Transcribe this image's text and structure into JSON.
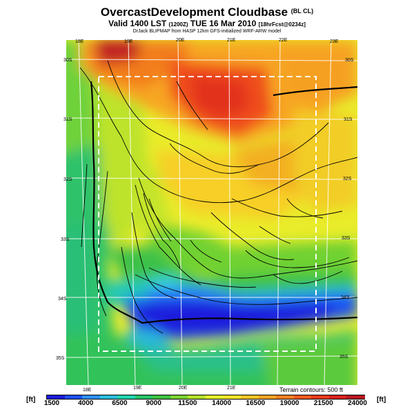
{
  "header": {
    "title": "OvercastDevelopment Cloudbase",
    "title_tag": "(BL CL)",
    "valid_prefix": "Valid 1400 LST",
    "valid_zulu": "(1200Z)",
    "valid_date": "TUE 16 Mar 2010",
    "valid_suffix": "[18hrFcst@0234z]",
    "source": "DrJack BLIPMAP from HASP 12km GFS-initialized WRF-ARW model"
  },
  "map": {
    "longitude_labels_top": [
      "18E",
      "19E",
      "20E",
      "21E",
      "22E",
      "23E"
    ],
    "longitude_labels_bottom": [
      "18E",
      "19E",
      "20E",
      "21E"
    ],
    "latitude_labels_left": [
      "30S",
      "31S",
      "32S",
      "33S",
      "34S",
      "35S"
    ],
    "latitude_labels_right": [
      "30S",
      "31S",
      "32S",
      "33S",
      "34S",
      "35S"
    ],
    "terrain_note": "Terrain contours: 500 ft"
  },
  "colorbar": {
    "unit_left": "[ft]",
    "unit_right": "[ft]",
    "tick_labels": [
      "1500",
      "4000",
      "6500",
      "9000",
      "11500",
      "14000",
      "16500",
      "19000",
      "21500",
      "24000"
    ],
    "colors": [
      "#1a1adc",
      "#1f4ef0",
      "#2f8ff5",
      "#2dbcdc",
      "#1fd5b0",
      "#27c468",
      "#3fc242",
      "#7cd231",
      "#b4e02a",
      "#e4ef2a",
      "#f7e428",
      "#f8c423",
      "#f6a322",
      "#f4801f",
      "#f05a1d",
      "#e83a1c",
      "#d8231e",
      "#b91521"
    ]
  }
}
